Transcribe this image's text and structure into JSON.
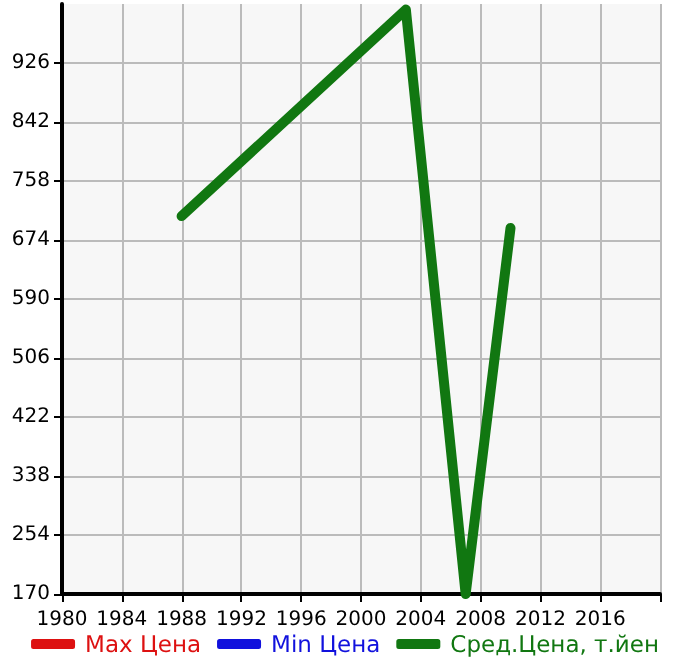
{
  "chart_data": {
    "type": "line",
    "x": [
      1988,
      2003,
      2007,
      2010
    ],
    "series": [
      {
        "name": "Max Цена",
        "color": "#dd1111",
        "values": [
          null,
          null,
          null,
          null
        ]
      },
      {
        "name": "Min Цена",
        "color": "#1111dd",
        "values": [
          null,
          null,
          null,
          null
        ]
      },
      {
        "name": "Сред.Цена, т.йен",
        "color": "#117711",
        "values": [
          708,
          1002,
          170,
          691
        ]
      }
    ],
    "xlim": [
      1980,
      2020
    ],
    "xticks": [
      1980,
      1984,
      1988,
      1992,
      1996,
      2000,
      2004,
      2008,
      2012,
      2016,
      {
        "value": 2020,
        "label": null
      }
    ],
    "ylim": [
      170,
      1010
    ],
    "yticks": [
      170,
      254,
      338,
      422,
      506,
      590,
      674,
      758,
      842,
      926
    ],
    "grid": true,
    "legend": "bottom",
    "marker": "none",
    "line_style": "solid"
  }
}
